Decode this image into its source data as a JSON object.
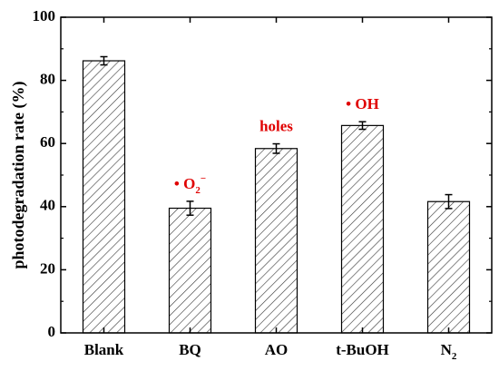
{
  "chart_data": {
    "type": "bar",
    "categories": [
      "Blank",
      "BQ",
      "AO",
      "t-BuOH",
      "N2"
    ],
    "category_display": {
      "N2": {
        "base": "N",
        "sub": "2"
      }
    },
    "values": [
      86.2,
      39.5,
      58.4,
      65.7,
      41.6
    ],
    "errors": [
      1.3,
      2.2,
      1.5,
      1.2,
      2.2
    ],
    "xlabel": "",
    "ylabel": "photodegradation rate (%)",
    "ylim": [
      0,
      100
    ],
    "yticks": [
      0,
      20,
      40,
      60,
      80,
      100
    ],
    "grid": false,
    "bar_fill": "diagonal-hatch",
    "annotations": [
      {
        "category": "BQ",
        "text": "• O",
        "sub": "2",
        "sup": "−",
        "color": "#e00000"
      },
      {
        "category": "AO",
        "text": "holes",
        "color": "#e00000"
      },
      {
        "category": "t-BuOH",
        "text": "• OH",
        "color": "#e00000"
      }
    ]
  }
}
